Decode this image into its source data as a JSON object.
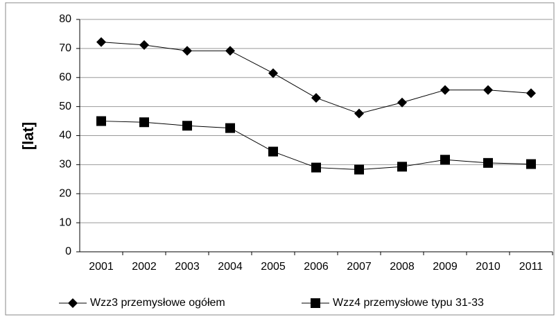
{
  "chart_data": {
    "type": "line",
    "y_label": "[lat]",
    "categories": [
      "2001",
      "2002",
      "2003",
      "2004",
      "2005",
      "2006",
      "2007",
      "2008",
      "2009",
      "2010",
      "2011"
    ],
    "series": [
      {
        "name": "Wzz3 przemysłowe ogółem",
        "color": "#000000",
        "marker": "diamond",
        "values": [
          72.2,
          71.2,
          69.2,
          69.2,
          61.5,
          53,
          47.6,
          51.4,
          55.7,
          55.7,
          54.6
        ]
      },
      {
        "name": "Wzz4 przemysłowe typu 31-33",
        "color": "#000000",
        "marker": "square",
        "values": [
          45,
          44.6,
          43.4,
          42.6,
          34.5,
          29,
          28.3,
          29.3,
          31.7,
          30.6,
          30.2
        ]
      }
    ],
    "ylim": [
      0,
      80
    ],
    "yticks": [
      0,
      10,
      20,
      30,
      40,
      50,
      60,
      70,
      80
    ],
    "grid": true,
    "legend": "bottom"
  }
}
